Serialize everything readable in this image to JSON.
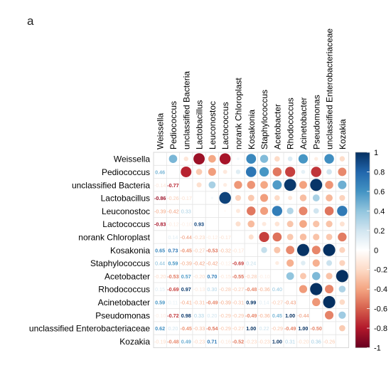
{
  "panel_label": "a",
  "chart_data": {
    "type": "heatmap",
    "subtype": "correlogram-mixed",
    "upper_triangle": "circle",
    "lower_triangle": "number",
    "variables": [
      "Weissella",
      "Pediococcus",
      "unclassified Bacteria",
      "Lactobacillus",
      "Leuconostoc",
      "Lactococcus",
      "norank Chloroplast",
      "Kosakonia",
      "Staphylococcus",
      "Acetobacter",
      "Rhodococcus",
      "Acinetobacter",
      "Pseudomonas",
      "unclassified Enterobacteriaceae",
      "Kozakia"
    ],
    "matrix": [
      [
        1.0,
        0.46,
        -0.14,
        -0.86,
        -0.39,
        -0.83,
        0.05,
        0.65,
        0.44,
        -0.2,
        0.15,
        0.59,
        -0.1,
        0.62,
        -0.19
      ],
      [
        0.46,
        1.0,
        -0.77,
        -0.26,
        -0.42,
        -0.12,
        0.14,
        0.73,
        0.59,
        -0.53,
        -0.69,
        0.11,
        -0.72,
        0.2,
        -0.48
      ],
      [
        -0.14,
        -0.77,
        1.0,
        -0.17,
        0.33,
        -0.1,
        -0.44,
        -0.45,
        -0.39,
        0.57,
        0.97,
        -0.41,
        0.98,
        -0.45,
        0.49
      ],
      [
        -0.86,
        -0.26,
        -0.17,
        1.0,
        0.04,
        0.93,
        -0.23,
        -0.27,
        -0.42,
        -0.2,
        -0.13,
        -0.31,
        0.33,
        -0.33,
        -0.23
      ],
      [
        -0.39,
        -0.42,
        0.33,
        0.04,
        1.0,
        -0.03,
        -0.12,
        -0.53,
        -0.42,
        0.7,
        0.3,
        -0.49,
        0.2,
        -0.54,
        0.71
      ],
      [
        -0.83,
        -0.12,
        -0.1,
        0.93,
        -0.03,
        1.0,
        -0.17,
        -0.32,
        -0.12,
        -0.15,
        -0.28,
        -0.39,
        -0.29,
        -0.29,
        -0.16
      ],
      [
        0.05,
        0.14,
        -0.44,
        -0.23,
        -0.12,
        -0.17,
        1.0,
        -0.17,
        -0.69,
        -0.55,
        -0.27,
        -0.31,
        -0.29,
        -0.27,
        -0.52
      ],
      [
        0.65,
        0.73,
        -0.45,
        -0.27,
        -0.53,
        -0.32,
        -0.17,
        1.0,
        0.24,
        -0.28,
        -0.48,
        0.99,
        -0.49,
        1.0,
        -0.23
      ],
      [
        0.44,
        0.59,
        -0.39,
        -0.42,
        -0.42,
        -0.12,
        -0.69,
        0.24,
        1.0,
        -0.1,
        -0.36,
        0.14,
        -0.36,
        0.22,
        -0.23
      ],
      [
        -0.2,
        -0.53,
        0.57,
        -0.2,
        0.7,
        -0.15,
        -0.55,
        -0.28,
        -0.1,
        1.0,
        0.4,
        -0.27,
        0.45,
        -0.29,
        1.0
      ],
      [
        0.15,
        -0.69,
        0.97,
        -0.13,
        0.3,
        -0.28,
        -0.27,
        -0.48,
        -0.36,
        0.4,
        1.0,
        -0.43,
        1.0,
        -0.49,
        0.31
      ],
      [
        0.59,
        0.11,
        -0.41,
        -0.31,
        -0.49,
        -0.39,
        -0.31,
        0.99,
        0.14,
        -0.27,
        -0.43,
        1.0,
        -0.44,
        1.0,
        -0.2
      ],
      [
        -0.1,
        -0.72,
        0.98,
        0.33,
        0.2,
        -0.29,
        -0.29,
        -0.49,
        -0.36,
        0.45,
        1.0,
        -0.44,
        1.0,
        -0.5,
        0.36
      ],
      [
        0.62,
        0.2,
        -0.45,
        -0.33,
        -0.54,
        -0.29,
        -0.27,
        1.0,
        0.22,
        -0.29,
        -0.49,
        1.0,
        -0.5,
        1.0,
        -0.26
      ],
      [
        -0.19,
        -0.48,
        0.49,
        -0.23,
        0.71,
        -0.16,
        -0.52,
        -0.23,
        -0.23,
        1.0,
        0.31,
        -0.2,
        0.36,
        -0.26,
        1.0
      ]
    ],
    "lower_labels": [
      [],
      [
        "0.46"
      ],
      [
        "-0.14",
        "-0.77"
      ],
      [
        "-0.86",
        "-0.26",
        "-0.17"
      ],
      [
        "-0.39",
        "-0.42",
        "0.33",
        ""
      ],
      [
        "-0.83",
        "-0.12",
        "-0.10",
        "0.93",
        ""
      ],
      [
        "",
        "0.14",
        "-0.44",
        "-0.23",
        "-0.12",
        "-0.17"
      ],
      [
        "0.65",
        "0.73",
        "-0.45",
        "-0.27",
        "-0.53",
        "-0.32",
        "-0.17"
      ],
      [
        "0.44",
        "0.59",
        "-0.39",
        "-0.42",
        "-0.42",
        "-0.12",
        "-0.69",
        "0.24"
      ],
      [
        "-0.20",
        "-0.53",
        "0.57",
        "-0.20",
        "0.70",
        "-0.15",
        "-0.55",
        "-0.28",
        "-0.10"
      ],
      [
        "0.15",
        "-0.69",
        "0.97",
        "-0.13",
        "0.30",
        "-0.28",
        "-0.27",
        "-0.48",
        "-0.36",
        "0.40"
      ],
      [
        "0.59",
        "0.11",
        "-0.41",
        "-0.31",
        "-0.49",
        "-0.39",
        "-0.31",
        "0.99",
        "0.14",
        "-0.27",
        "-0.43"
      ],
      [
        "-0.10",
        "-0.72",
        "0.98",
        "0.33",
        "0.20",
        "-0.29",
        "-0.29",
        "-0.49",
        "-0.36",
        "0.45",
        "1.00",
        "-0.44"
      ],
      [
        "0.62",
        "0.20",
        "-0.45",
        "-0.33",
        "-0.54",
        "-0.29",
        "-0.27",
        "1.00",
        "0.22",
        "-0.29",
        "-0.49",
        "1.00",
        "-0.50"
      ],
      [
        "-0.19",
        "-0.48",
        "0.49",
        "-0.23",
        "0.71",
        "-0.16",
        "-0.52",
        "-0.23",
        "-0.23",
        "1.00",
        "0.31",
        "-0.20",
        "0.36",
        "-0.26"
      ]
    ],
    "color_scale": {
      "min": -1,
      "max": 1,
      "stops": [
        "#67001F",
        "#B2182B",
        "#D6604D",
        "#F4A582",
        "#FDDBC7",
        "#FFFFFF",
        "#D1E5F0",
        "#92C5DE",
        "#4393C3",
        "#2166AC",
        "#053061"
      ],
      "ticks": [
        "1",
        "0.8",
        "0.6",
        "0.4",
        "0.2",
        "0",
        "-0.2",
        "-0.4",
        "-0.6",
        "-0.8",
        "-1"
      ]
    },
    "grid": true,
    "legend": "right"
  }
}
